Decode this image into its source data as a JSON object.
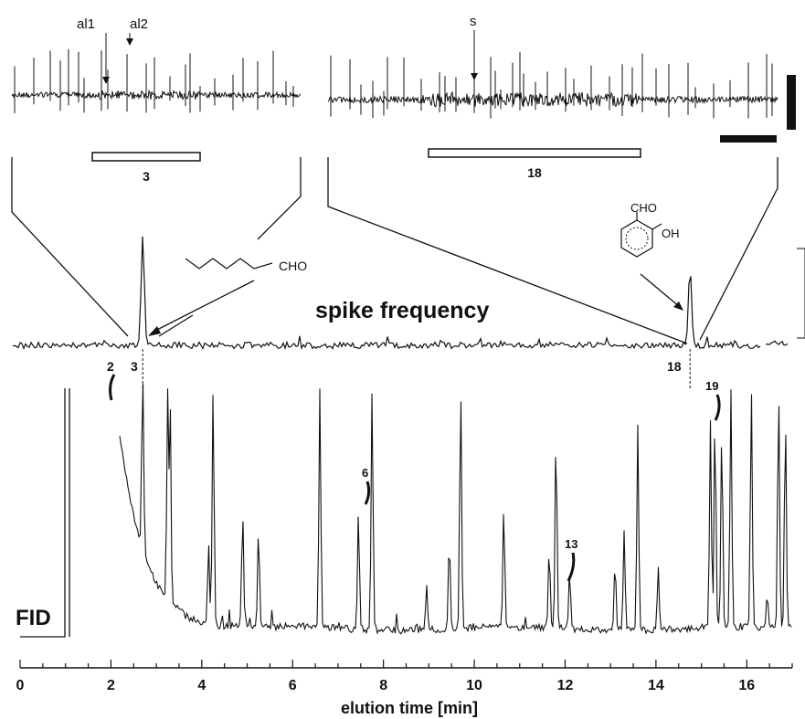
{
  "chart_data": {
    "type": "line",
    "xlabel": "elution time  [min]",
    "xlim": [
      0,
      17
    ],
    "x_ticks": [
      0,
      2,
      4,
      6,
      8,
      10,
      12,
      14,
      16
    ],
    "x_tick_labels": [
      "0",
      "2",
      "4",
      "6",
      "8",
      "10",
      "12",
      "14",
      "16"
    ],
    "series": [
      {
        "name": "spike frequency",
        "peaks": [
          {
            "x": 2.7,
            "label": "3"
          },
          {
            "x": 14.75,
            "label": "18"
          }
        ]
      },
      {
        "name": "FID",
        "peaks": [
          {
            "x": 1.0
          },
          {
            "x": 1.1
          },
          {
            "x": 2.7
          },
          {
            "x": 3.25
          },
          {
            "x": 3.3
          },
          {
            "x": 4.25
          },
          {
            "x": 6.6
          },
          {
            "x": 7.75
          },
          {
            "x": 9.7
          },
          {
            "x": 11.8
          },
          {
            "x": 13.6
          },
          {
            "x": 15.3
          },
          {
            "x": 15.65
          },
          {
            "x": 16.1
          }
        ]
      }
    ],
    "annotations": {
      "recording_left": {
        "labels": [
          "al1",
          "al2"
        ],
        "bar_label": "3"
      },
      "recording_right": {
        "labels": [
          "s"
        ],
        "bar_label": "18"
      },
      "compound_3": {
        "substituent": "CHO"
      },
      "compound_18": {
        "substituents": [
          "CHO",
          "OH"
        ]
      },
      "peak_numbers": [
        "2",
        "3",
        "18",
        "6",
        "13",
        "19"
      ]
    }
  }
}
